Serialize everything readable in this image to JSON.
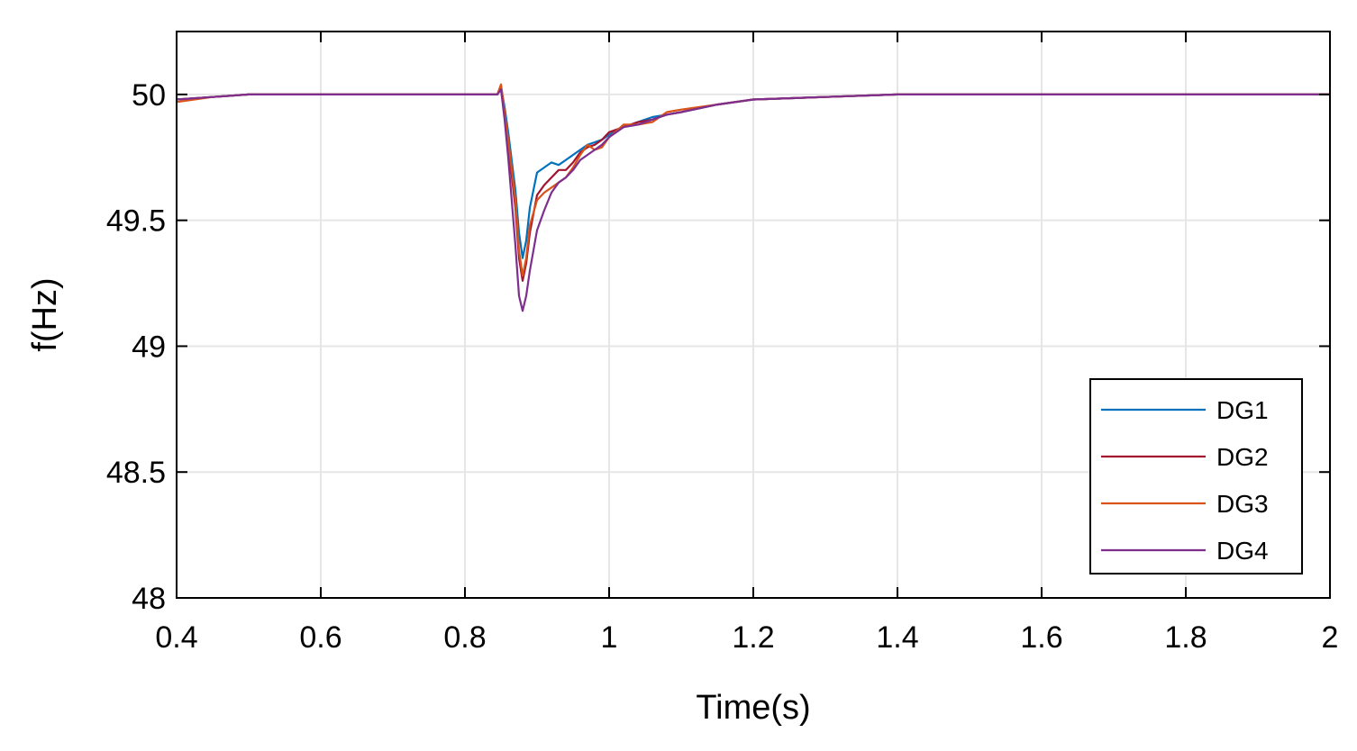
{
  "chart_data": {
    "type": "line",
    "title": "",
    "xlabel": "Time(s)",
    "ylabel": "f(Hz)",
    "xlim": [
      0.4,
      2
    ],
    "ylim": [
      48,
      50.25
    ],
    "xticks": [
      0.4,
      0.6,
      0.8,
      1,
      1.2,
      1.4,
      1.6,
      1.8,
      2
    ],
    "xtick_labels": [
      "0.4",
      "0.6",
      "0.8",
      "1",
      "1.2",
      "1.4",
      "1.6",
      "1.8",
      "2"
    ],
    "yticks": [
      48,
      48.5,
      49,
      49.5,
      50
    ],
    "ytick_labels": [
      "48",
      "48.5",
      "49",
      "49.5",
      "50"
    ],
    "grid": true,
    "legend_position": "bottom-right",
    "series": [
      {
        "name": "DG1",
        "color": "#0072BD",
        "x": [
          0.4,
          0.45,
          0.5,
          0.6,
          0.7,
          0.8,
          0.845,
          0.85,
          0.855,
          0.86,
          0.87,
          0.875,
          0.88,
          0.885,
          0.89,
          0.9,
          0.91,
          0.92,
          0.93,
          0.94,
          0.95,
          0.96,
          0.97,
          0.98,
          0.99,
          1.0,
          1.02,
          1.04,
          1.06,
          1.08,
          1.1,
          1.15,
          1.2,
          1.3,
          1.4,
          1.6,
          1.8,
          2.0
        ],
        "y": [
          49.98,
          49.99,
          50.0,
          50.0,
          50.0,
          50.0,
          50.0,
          50.03,
          49.95,
          49.85,
          49.62,
          49.45,
          49.35,
          49.42,
          49.55,
          49.69,
          49.71,
          49.73,
          49.72,
          49.74,
          49.76,
          49.78,
          49.8,
          49.81,
          49.82,
          49.84,
          49.87,
          49.89,
          49.91,
          49.92,
          49.93,
          49.96,
          49.98,
          49.99,
          50.0,
          50.0,
          50.0,
          50.0
        ]
      },
      {
        "name": "DG2",
        "color": "#A2142F",
        "x": [
          0.4,
          0.45,
          0.5,
          0.6,
          0.7,
          0.8,
          0.845,
          0.85,
          0.855,
          0.86,
          0.87,
          0.875,
          0.88,
          0.885,
          0.89,
          0.9,
          0.91,
          0.92,
          0.93,
          0.94,
          0.95,
          0.96,
          0.97,
          0.98,
          0.99,
          1.0,
          1.02,
          1.04,
          1.06,
          1.08,
          1.1,
          1.15,
          1.2,
          1.3,
          1.4,
          1.6,
          1.8,
          2.0
        ],
        "y": [
          49.98,
          49.99,
          50.0,
          50.0,
          50.0,
          50.0,
          50.0,
          50.03,
          49.92,
          49.8,
          49.55,
          49.35,
          49.26,
          49.33,
          49.45,
          49.6,
          49.64,
          49.67,
          49.7,
          49.7,
          49.73,
          49.77,
          49.79,
          49.8,
          49.82,
          49.85,
          49.87,
          49.89,
          49.9,
          49.92,
          49.93,
          49.96,
          49.98,
          49.99,
          50.0,
          50.0,
          50.0,
          50.0
        ]
      },
      {
        "name": "DG3",
        "color": "#D95319",
        "x": [
          0.4,
          0.45,
          0.5,
          0.6,
          0.7,
          0.8,
          0.845,
          0.85,
          0.855,
          0.86,
          0.87,
          0.875,
          0.88,
          0.885,
          0.89,
          0.9,
          0.91,
          0.92,
          0.93,
          0.94,
          0.95,
          0.96,
          0.97,
          0.98,
          0.99,
          1.0,
          1.02,
          1.04,
          1.06,
          1.08,
          1.1,
          1.15,
          1.2,
          1.3,
          1.4,
          1.6,
          1.8,
          2.0
        ],
        "y": [
          49.97,
          49.99,
          50.0,
          50.0,
          50.0,
          50.0,
          50.0,
          50.04,
          49.93,
          49.82,
          49.58,
          49.38,
          49.28,
          49.35,
          49.48,
          49.58,
          49.61,
          49.63,
          49.65,
          49.67,
          49.71,
          49.76,
          49.8,
          49.78,
          49.79,
          49.83,
          49.88,
          49.88,
          49.89,
          49.93,
          49.94,
          49.96,
          49.98,
          49.99,
          50.0,
          50.0,
          50.0,
          50.0
        ]
      },
      {
        "name": "DG4",
        "color": "#7E2F8E",
        "x": [
          0.4,
          0.45,
          0.5,
          0.6,
          0.7,
          0.8,
          0.845,
          0.85,
          0.855,
          0.86,
          0.87,
          0.875,
          0.88,
          0.885,
          0.89,
          0.9,
          0.91,
          0.92,
          0.93,
          0.94,
          0.95,
          0.96,
          0.97,
          0.98,
          0.99,
          1.0,
          1.02,
          1.04,
          1.06,
          1.08,
          1.1,
          1.15,
          1.2,
          1.3,
          1.4,
          1.6,
          1.8,
          2.0
        ],
        "y": [
          49.98,
          49.99,
          50.0,
          50.0,
          50.0,
          50.0,
          50.0,
          50.02,
          49.9,
          49.75,
          49.4,
          49.2,
          49.14,
          49.2,
          49.3,
          49.46,
          49.54,
          49.61,
          49.65,
          49.67,
          49.7,
          49.74,
          49.76,
          49.78,
          49.8,
          49.83,
          49.87,
          49.88,
          49.9,
          49.92,
          49.93,
          49.96,
          49.98,
          49.99,
          50.0,
          50.0,
          50.0,
          50.0
        ]
      }
    ]
  }
}
